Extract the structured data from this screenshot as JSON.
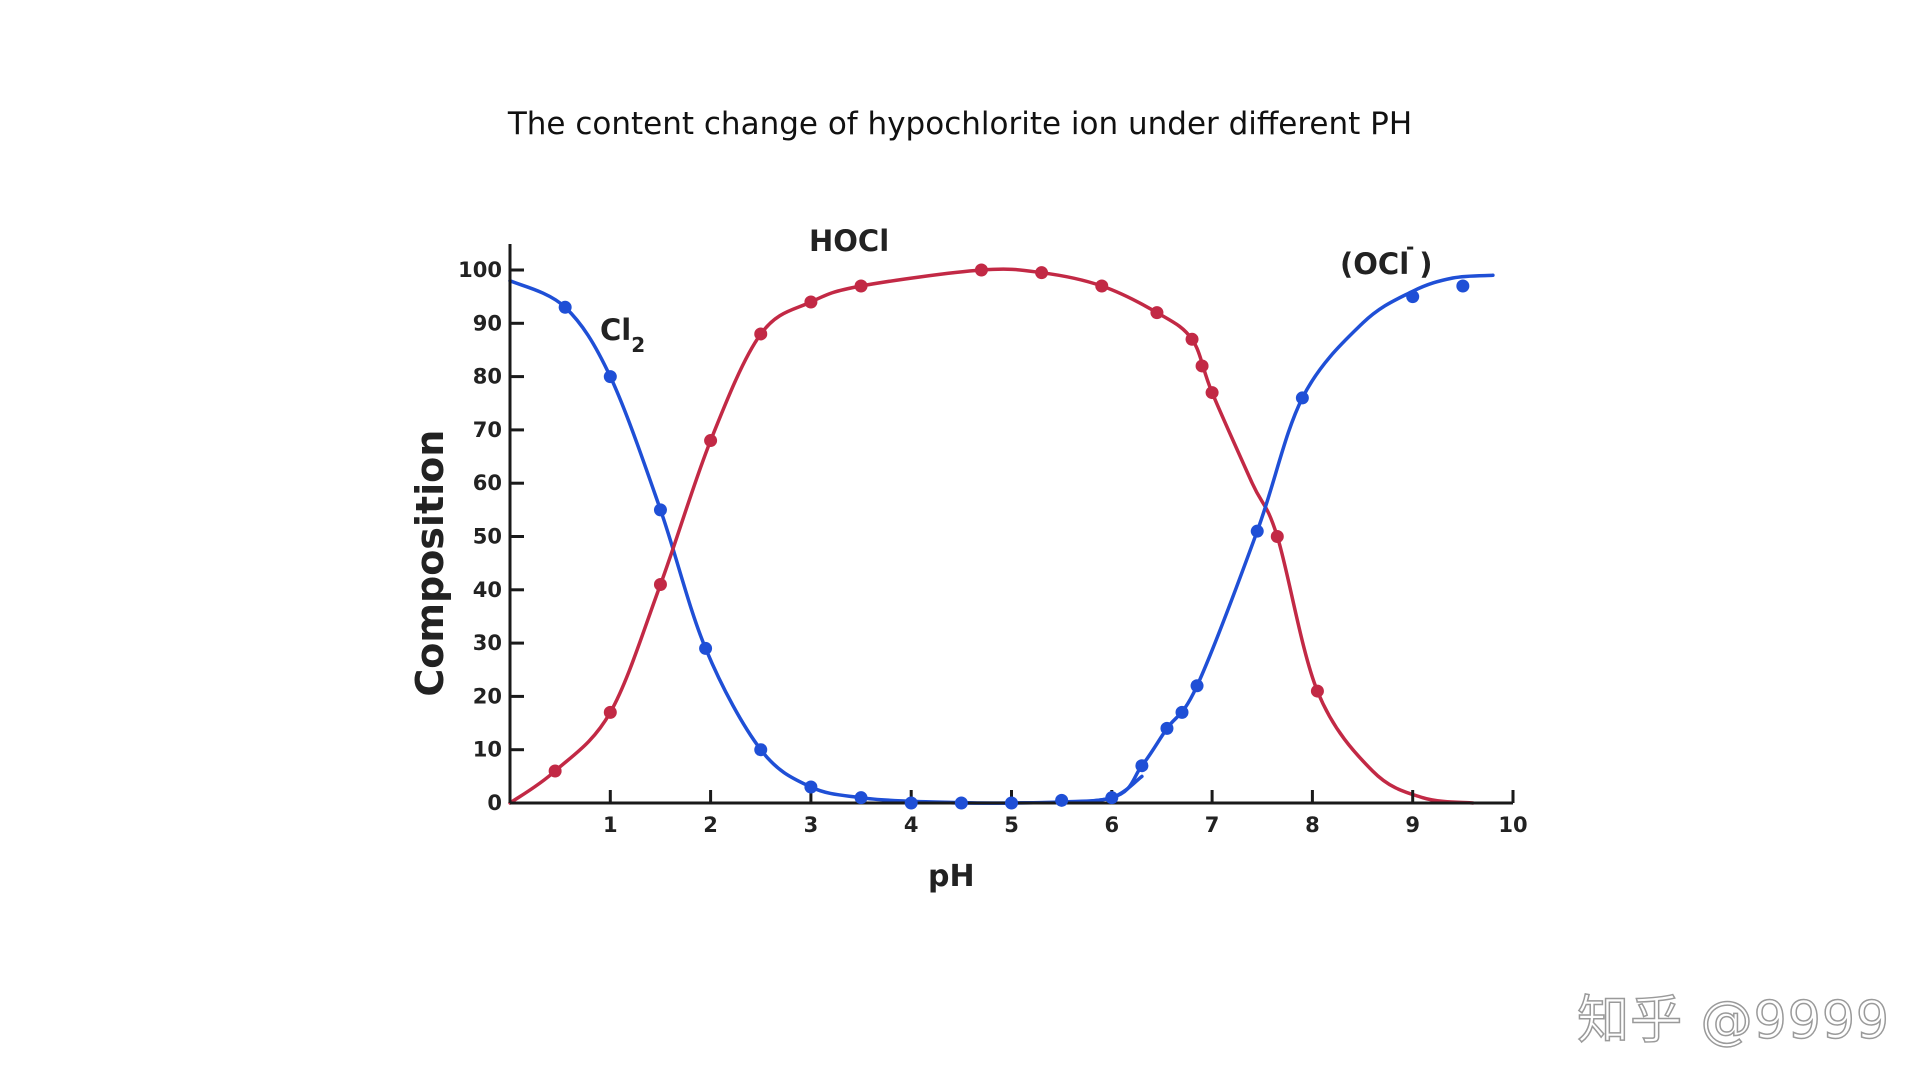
{
  "chart_data": {
    "type": "line",
    "title": "The content change of hypochlorite ion under different PH",
    "xlabel": "pH",
    "ylabel": "Composition",
    "xlim": [
      0,
      10
    ],
    "ylim": [
      0,
      100
    ],
    "x_ticks": [
      "1",
      "2",
      "3",
      "4",
      "5",
      "6",
      "7",
      "8",
      "9",
      "10"
    ],
    "y_ticks": [
      "0",
      "10",
      "20",
      "30",
      "40",
      "50",
      "60",
      "70",
      "80",
      "90",
      "100"
    ],
    "grid": false,
    "legend": "none",
    "series": [
      {
        "name": "Cl",
        "subscript": "2",
        "color": "#1f4fd6",
        "x": [
          0.55,
          1.0,
          1.5,
          1.95,
          2.5,
          3.0,
          3.5,
          4.0,
          4.5,
          5.0,
          5.5,
          6.0
        ],
        "y": [
          93,
          80,
          55,
          29,
          10,
          3,
          1,
          0,
          0,
          0,
          0.5,
          1
        ]
      },
      {
        "name": "HOCl",
        "color": "#c22945",
        "x": [
          0.45,
          1.0,
          1.5,
          2.0,
          2.5,
          3.0,
          3.5,
          4.7,
          5.3,
          5.9,
          6.45,
          6.8,
          6.9,
          7.0,
          7.65,
          8.05
        ],
        "y": [
          6,
          17,
          41,
          68,
          88,
          94,
          97,
          100,
          99.5,
          97,
          92,
          87,
          82,
          77,
          50,
          21
        ]
      },
      {
        "name": "(OCl )",
        "superscript": "-",
        "color": "#1f4fd6",
        "x": [
          6.3,
          6.55,
          6.7,
          6.85,
          7.45,
          7.9,
          9.0,
          9.5
        ],
        "y": [
          7,
          14,
          17,
          22,
          51,
          76,
          95,
          97
        ]
      }
    ]
  },
  "watermark": {
    "text": "知乎 @9999"
  }
}
